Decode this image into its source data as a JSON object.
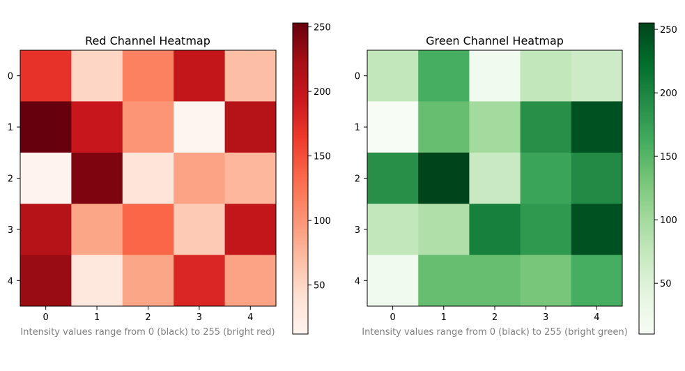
{
  "colors": {
    "red_scale": [
      "#fff5f0",
      "#fee0d2",
      "#fcbba1",
      "#fc9272",
      "#fb6a4a",
      "#ef3b2c",
      "#cb181d",
      "#a50f15",
      "#67000d"
    ],
    "green_scale": [
      "#f7fcf5",
      "#e5f5e0",
      "#c7e9c0",
      "#a1d99b",
      "#74c476",
      "#41ab5d",
      "#238b45",
      "#006d2c",
      "#00441b"
    ],
    "caption": "#808080"
  },
  "chart_data": [
    {
      "type": "heatmap",
      "title": "Red Channel Heatmap",
      "caption": "Intensity values range from 0 (black) to 255 (bright red)",
      "x_ticks": [
        "0",
        "1",
        "2",
        "3",
        "4"
      ],
      "y_ticks": [
        "0",
        "1",
        "2",
        "3",
        "4"
      ],
      "values": [
        [
          170,
          50,
          115,
          200,
          70
        ],
        [
          253,
          195,
          100,
          12,
          210
        ],
        [
          15,
          242,
          35,
          90,
          75
        ],
        [
          210,
          88,
          135,
          60,
          200
        ],
        [
          228,
          32,
          88,
          180,
          90
        ]
      ],
      "colorbar": {
        "min": 12,
        "max": 253,
        "ticks": [
          50,
          100,
          150,
          200,
          250
        ]
      }
    },
    {
      "type": "heatmap",
      "title": "Green Channel Heatmap",
      "caption": "Intensity values range from 0 (black) to 255 (bright green)",
      "x_ticks": [
        "0",
        "1",
        "2",
        "3",
        "4"
      ],
      "y_ticks": [
        "0",
        "1",
        "2",
        "3",
        "4"
      ],
      "values": [
        [
          75,
          160,
          20,
          75,
          65
        ],
        [
          10,
          140,
          100,
          190,
          245
        ],
        [
          190,
          255,
          70,
          170,
          195
        ],
        [
          75,
          90,
          205,
          180,
          245
        ],
        [
          20,
          140,
          140,
          130,
          160
        ]
      ],
      "colorbar": {
        "min": 10,
        "max": 255,
        "ticks": [
          50,
          100,
          150,
          200,
          250
        ]
      }
    }
  ]
}
